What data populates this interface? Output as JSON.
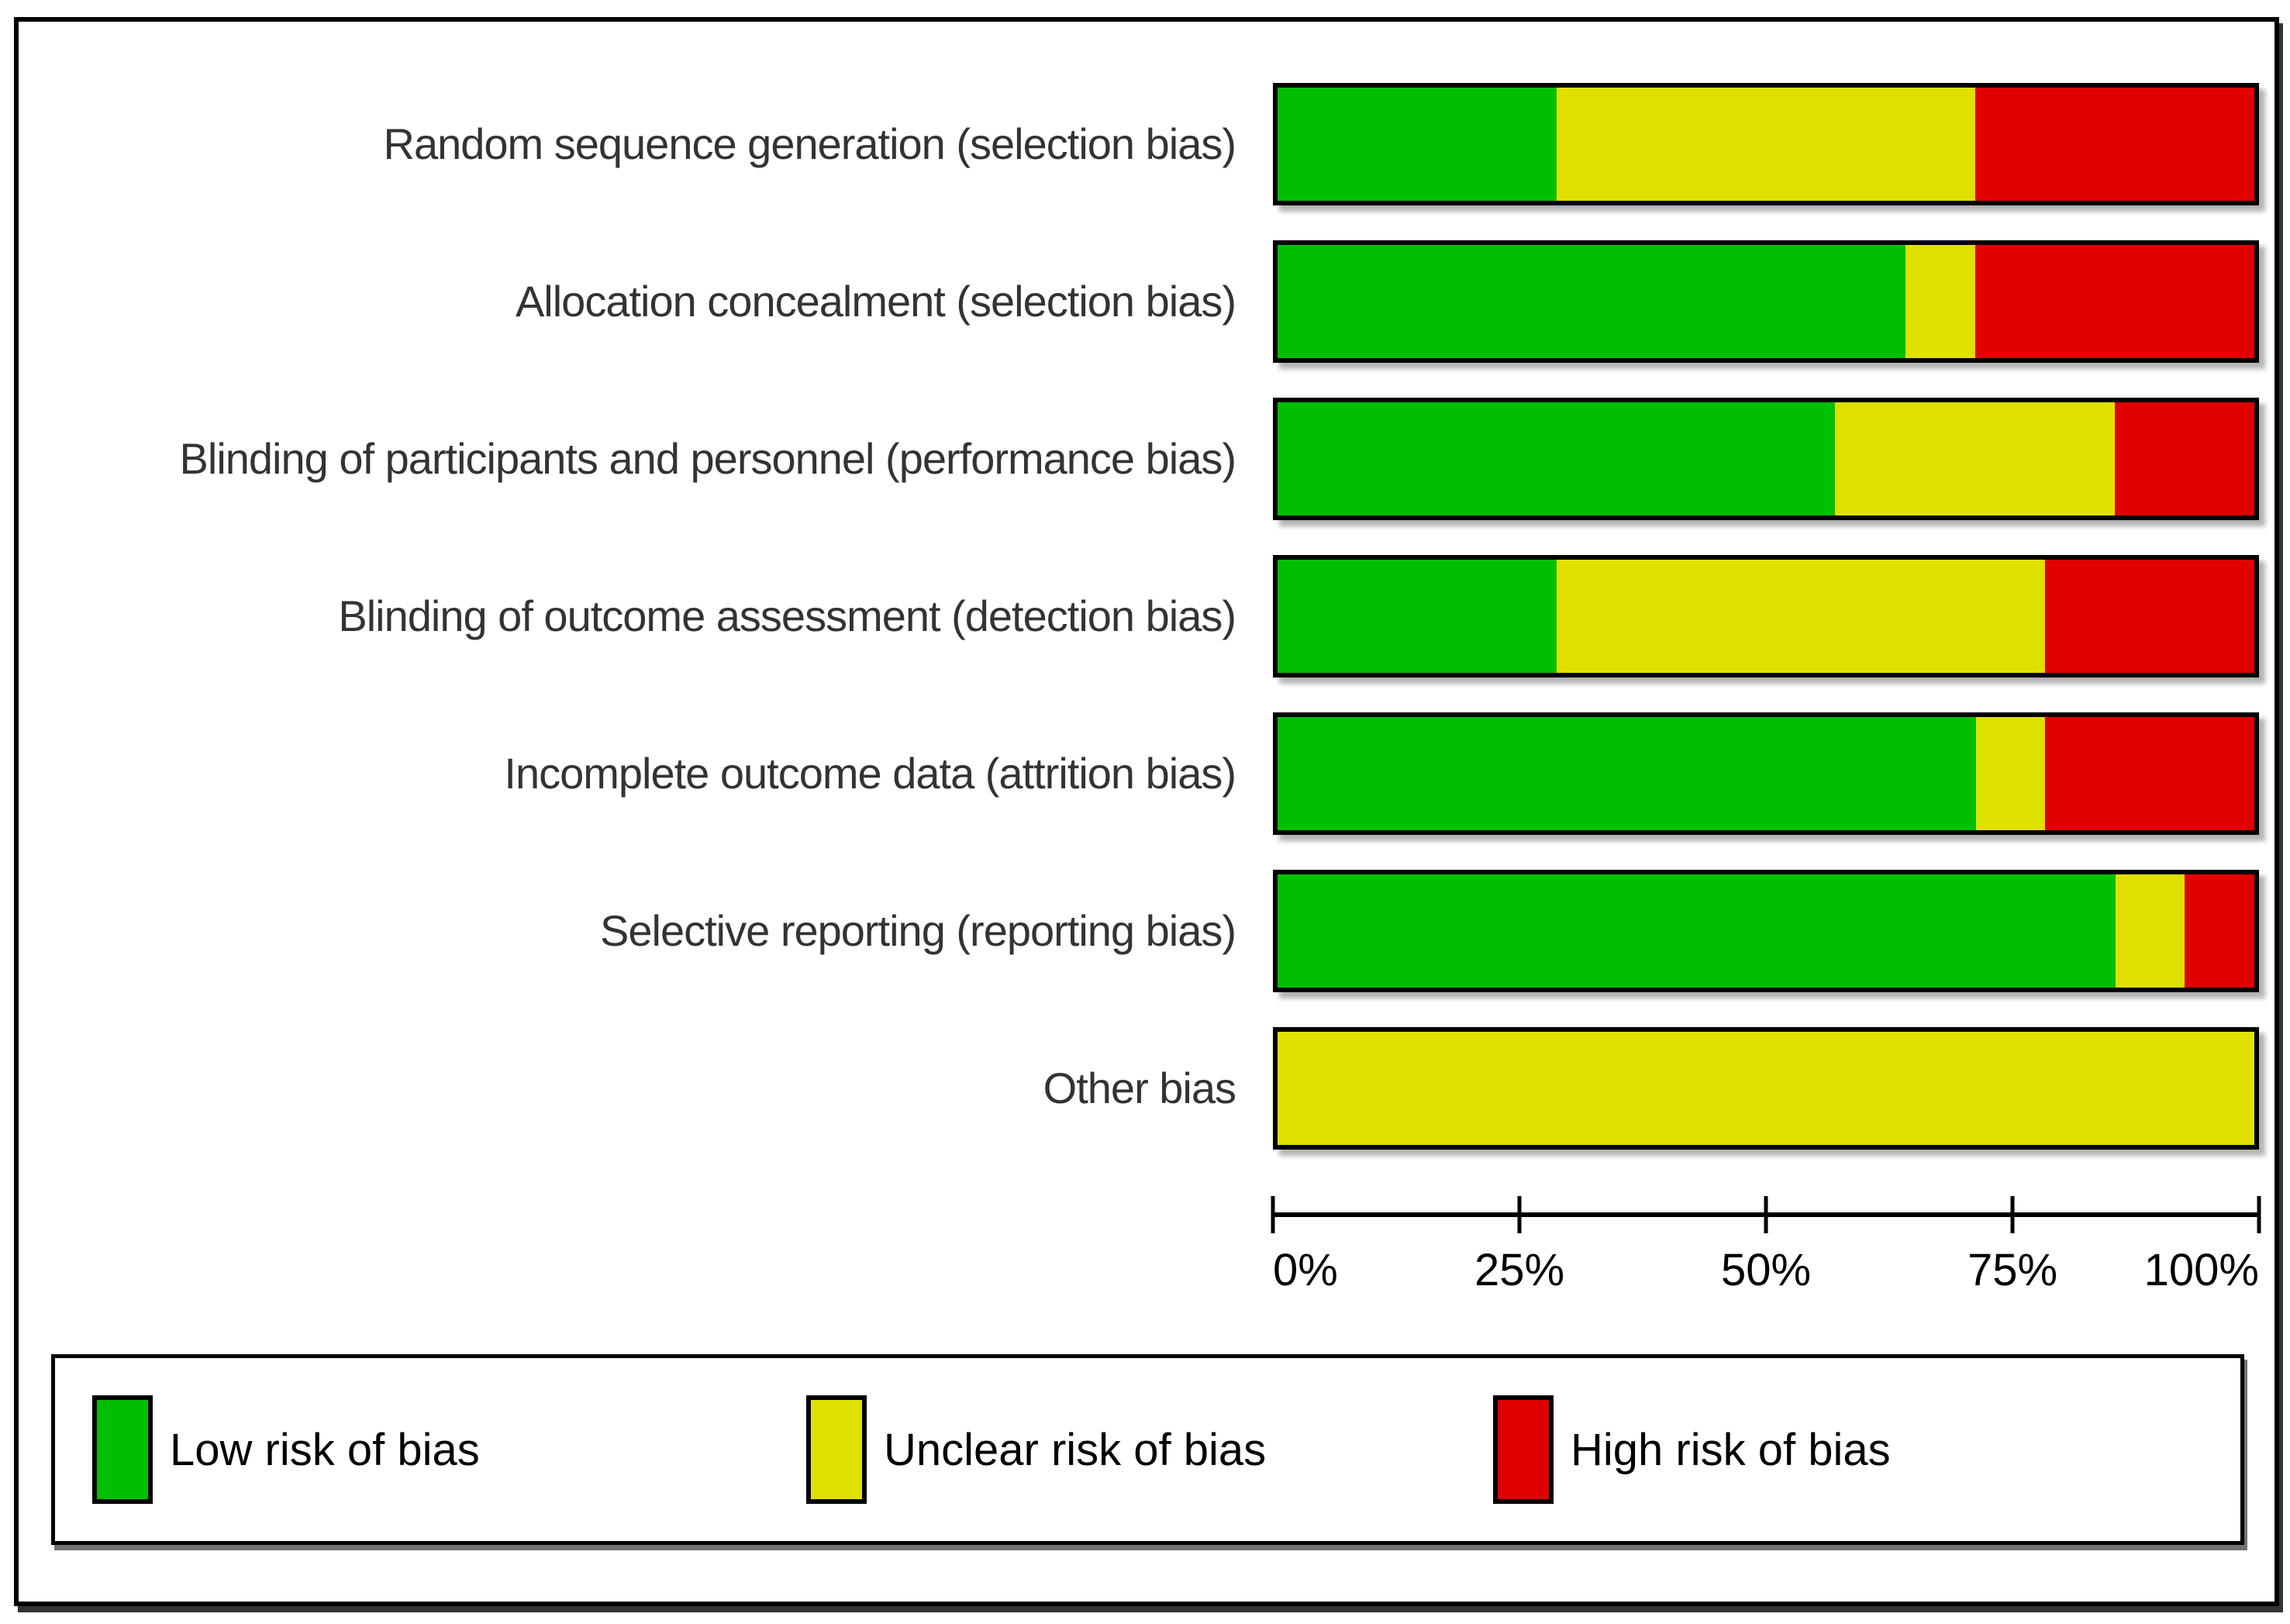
{
  "figure": {
    "background": "#ffffff",
    "frame_border_color": "#000000",
    "label_text_color": "#333333"
  },
  "chart_data": {
    "type": "bar",
    "orientation": "horizontal",
    "stacked": true,
    "unit": "percent",
    "title": "",
    "xlabel": "",
    "ylabel": "",
    "xlim": [
      0,
      100
    ],
    "grid": false,
    "legend_position": "bottom",
    "categories": [
      "Random sequence generation (selection bias)",
      "Allocation concealment (selection bias)",
      "Blinding of participants and personnel (performance bias)",
      "Blinding of outcome assessment (detection bias)",
      "Incomplete outcome data (attrition bias)",
      "Selective reporting (reporting bias)",
      "Other bias"
    ],
    "series": [
      {
        "name": "Low risk of bias",
        "color": "#00bf00",
        "values": [
          28.6,
          64.3,
          57.1,
          28.6,
          71.4,
          85.7,
          0
        ]
      },
      {
        "name": "Unclear risk of bias",
        "color": "#e0e000",
        "values": [
          42.9,
          7.1,
          28.6,
          50.0,
          7.1,
          7.1,
          100
        ]
      },
      {
        "name": "High risk of bias",
        "color": "#e00000",
        "values": [
          28.6,
          28.6,
          14.3,
          21.4,
          21.4,
          7.1,
          0
        ]
      }
    ],
    "x_ticks": [
      "0%",
      "25%",
      "50%",
      "75%",
      "100%"
    ]
  },
  "legend": {
    "items": [
      {
        "label": "Low risk of bias",
        "color": "#00bf00"
      },
      {
        "label": "Unclear risk of bias",
        "color": "#e0e000"
      },
      {
        "label": "High risk of bias",
        "color": "#e00000"
      }
    ]
  }
}
